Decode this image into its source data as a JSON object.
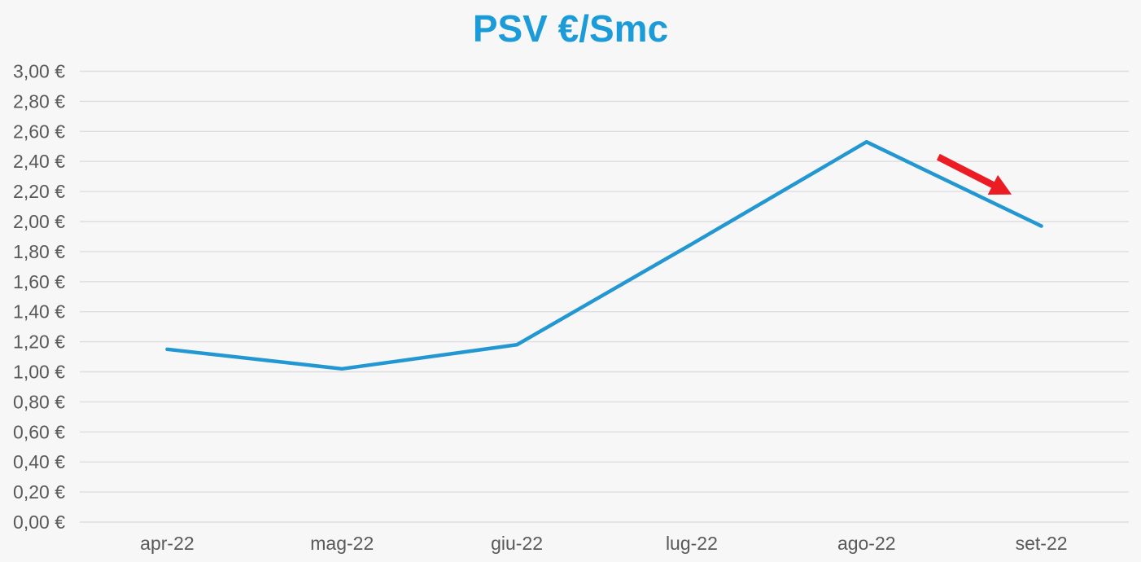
{
  "chart_data": {
    "type": "line",
    "title": "PSV €/Smc",
    "categories": [
      "apr-22",
      "mag-22",
      "giu-22",
      "lug-22",
      "ago-22",
      "set-22"
    ],
    "series": [
      {
        "name": "PSV",
        "values": [
          1.15,
          1.02,
          1.18,
          1.85,
          2.53,
          1.97
        ]
      }
    ],
    "ylim": [
      0,
      3
    ],
    "y_tick_step": 0.2,
    "y_tick_labels": [
      "0,00 €",
      "0,20 €",
      "0,40 €",
      "0,60 €",
      "0,80 €",
      "1,00 €",
      "1,20 €",
      "1,40 €",
      "1,60 €",
      "1,80 €",
      "2,00 €",
      "2,20 €",
      "2,40 €",
      "2,60 €",
      "2,80 €",
      "3,00 €"
    ],
    "xlabel": "",
    "ylabel": "",
    "grid": true,
    "legend": "none",
    "annotation": {
      "type": "arrow-down-trend",
      "from": {
        "x": 4.41,
        "y": 2.43
      },
      "to": {
        "x": 4.83,
        "y": 2.18
      }
    }
  },
  "colors": {
    "background": "#f7f7f8",
    "title": "#1b9bd7",
    "line": "#2297d2",
    "grid": "#dedee1",
    "axis_label": "#595959",
    "arrow": "#ec1c24"
  }
}
